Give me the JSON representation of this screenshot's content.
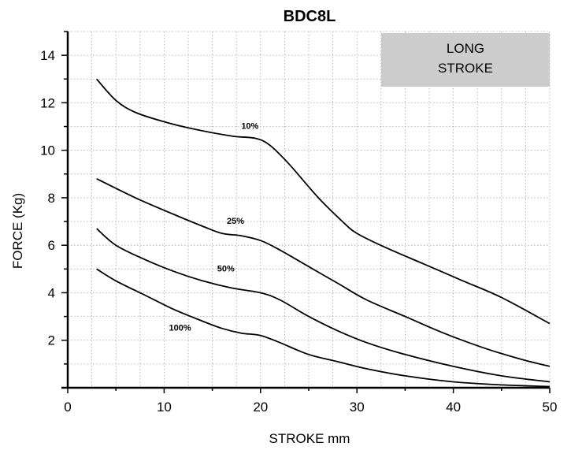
{
  "chart_data": {
    "type": "line",
    "title": "BDC8L",
    "xlabel": "STROKE mm",
    "ylabel": "FORCE (Kg)",
    "xlim": [
      0,
      50
    ],
    "ylim": [
      0,
      15
    ],
    "xticks": [
      0,
      10,
      20,
      30,
      40,
      50
    ],
    "yticks": [
      2,
      4,
      6,
      8,
      10,
      12,
      14
    ],
    "grid": true,
    "annotation": {
      "lines": [
        "LONG",
        "STROKE"
      ],
      "position": "top-right",
      "fill": "#cccccc"
    },
    "series": [
      {
        "name": "10%",
        "points": [
          [
            3,
            13.0
          ],
          [
            5,
            12.1
          ],
          [
            7,
            11.6
          ],
          [
            10,
            11.2
          ],
          [
            13,
            10.9
          ],
          [
            17,
            10.6
          ],
          [
            19.5,
            10.5
          ],
          [
            21,
            10.2
          ],
          [
            23,
            9.4
          ],
          [
            26,
            8.0
          ],
          [
            28.5,
            7.0
          ],
          [
            30,
            6.5
          ],
          [
            33,
            5.9
          ],
          [
            37,
            5.2
          ],
          [
            41,
            4.5
          ],
          [
            45,
            3.8
          ],
          [
            50,
            2.7
          ]
        ],
        "label_at": [
          18,
          10.9
        ]
      },
      {
        "name": "25%",
        "points": [
          [
            3,
            8.8
          ],
          [
            7,
            8.0
          ],
          [
            11,
            7.3
          ],
          [
            14,
            6.8
          ],
          [
            16,
            6.5
          ],
          [
            18,
            6.4
          ],
          [
            20,
            6.2
          ],
          [
            22,
            5.8
          ],
          [
            25,
            5.1
          ],
          [
            28,
            4.4
          ],
          [
            31,
            3.7
          ],
          [
            35,
            3.0
          ],
          [
            39,
            2.3
          ],
          [
            43,
            1.7
          ],
          [
            47,
            1.2
          ],
          [
            50,
            0.9
          ]
        ],
        "label_at": [
          16.5,
          6.9
        ]
      },
      {
        "name": "50%",
        "points": [
          [
            3,
            6.7
          ],
          [
            5,
            6.0
          ],
          [
            8,
            5.4
          ],
          [
            11,
            4.9
          ],
          [
            14,
            4.5
          ],
          [
            17,
            4.2
          ],
          [
            20,
            4.0
          ],
          [
            22,
            3.7
          ],
          [
            25,
            3.0
          ],
          [
            28,
            2.4
          ],
          [
            31,
            1.9
          ],
          [
            35,
            1.4
          ],
          [
            40,
            0.9
          ],
          [
            45,
            0.5
          ],
          [
            50,
            0.25
          ]
        ],
        "label_at": [
          15.5,
          4.9
        ]
      },
      {
        "name": "100%",
        "points": [
          [
            3,
            5.0
          ],
          [
            5,
            4.5
          ],
          [
            8,
            3.9
          ],
          [
            11,
            3.3
          ],
          [
            14,
            2.8
          ],
          [
            16,
            2.5
          ],
          [
            18,
            2.3
          ],
          [
            20,
            2.2
          ],
          [
            22,
            1.9
          ],
          [
            25,
            1.4
          ],
          [
            28,
            1.1
          ],
          [
            31,
            0.8
          ],
          [
            35,
            0.5
          ],
          [
            40,
            0.25
          ],
          [
            45,
            0.12
          ],
          [
            50,
            0.05
          ]
        ],
        "label_at": [
          10.5,
          2.4
        ]
      }
    ]
  }
}
